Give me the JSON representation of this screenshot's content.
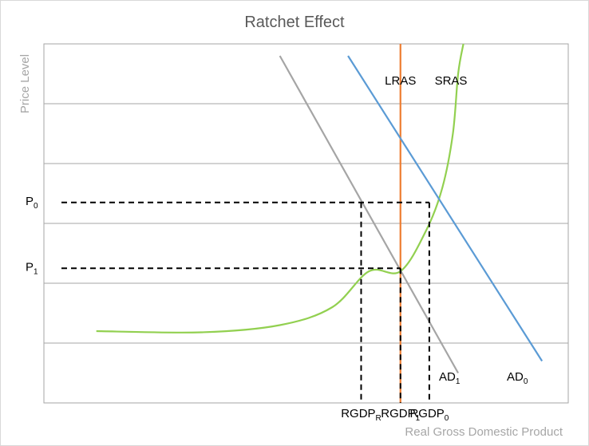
{
  "chart_data": {
    "type": "line",
    "title": "Ratchet Effect",
    "xlabel": "Real Gross Domestic Product",
    "ylabel": "Price Level",
    "xlim": [
      0,
      10
    ],
    "ylim": [
      0,
      6
    ],
    "grid": {
      "horizontal": true,
      "vertical": false
    },
    "gridlines_y": [
      1,
      2,
      3,
      4,
      5,
      6
    ],
    "series": [
      {
        "name": "LRAS",
        "color": "#ed7d31",
        "points": [
          [
            6.8,
            0
          ],
          [
            6.8,
            6
          ]
        ]
      },
      {
        "name": "SRAS",
        "color": "#92d050",
        "points": [
          [
            1.0,
            1.2
          ],
          [
            3.0,
            1.18
          ],
          [
            4.5,
            1.3
          ],
          [
            5.5,
            1.6
          ],
          [
            6.2,
            2.2
          ],
          [
            6.8,
            2.2
          ],
          [
            7.3,
            2.9
          ],
          [
            7.6,
            3.6
          ],
          [
            7.8,
            4.5
          ],
          [
            7.9,
            5.5
          ],
          [
            8.0,
            6.0
          ]
        ]
      },
      {
        "name": "AD",
        "name_sub": "1",
        "color": "#a5a5a5",
        "points": [
          [
            4.5,
            5.8
          ],
          [
            7.9,
            0.5
          ]
        ]
      },
      {
        "name": "AD",
        "name_sub": "0",
        "color": "#5b9bd5",
        "points": [
          [
            5.8,
            5.8
          ],
          [
            9.5,
            0.7
          ]
        ]
      }
    ],
    "reference_lines": [
      {
        "label": "P",
        "label_sub": "0",
        "y": 3.35,
        "x_end": 7.35
      },
      {
        "label": "P",
        "label_sub": "1",
        "y": 2.25,
        "x_end": 6.8
      }
    ],
    "x_markers": [
      {
        "label": "RGDP",
        "label_sub": "R",
        "x": 6.05,
        "y_top": 3.35
      },
      {
        "label": "RGDP",
        "label_sub": "1",
        "x": 6.8,
        "y_top": 2.25
      },
      {
        "label": "RGDP",
        "label_sub": "0",
        "x": 7.35,
        "y_top": 3.35
      }
    ]
  }
}
